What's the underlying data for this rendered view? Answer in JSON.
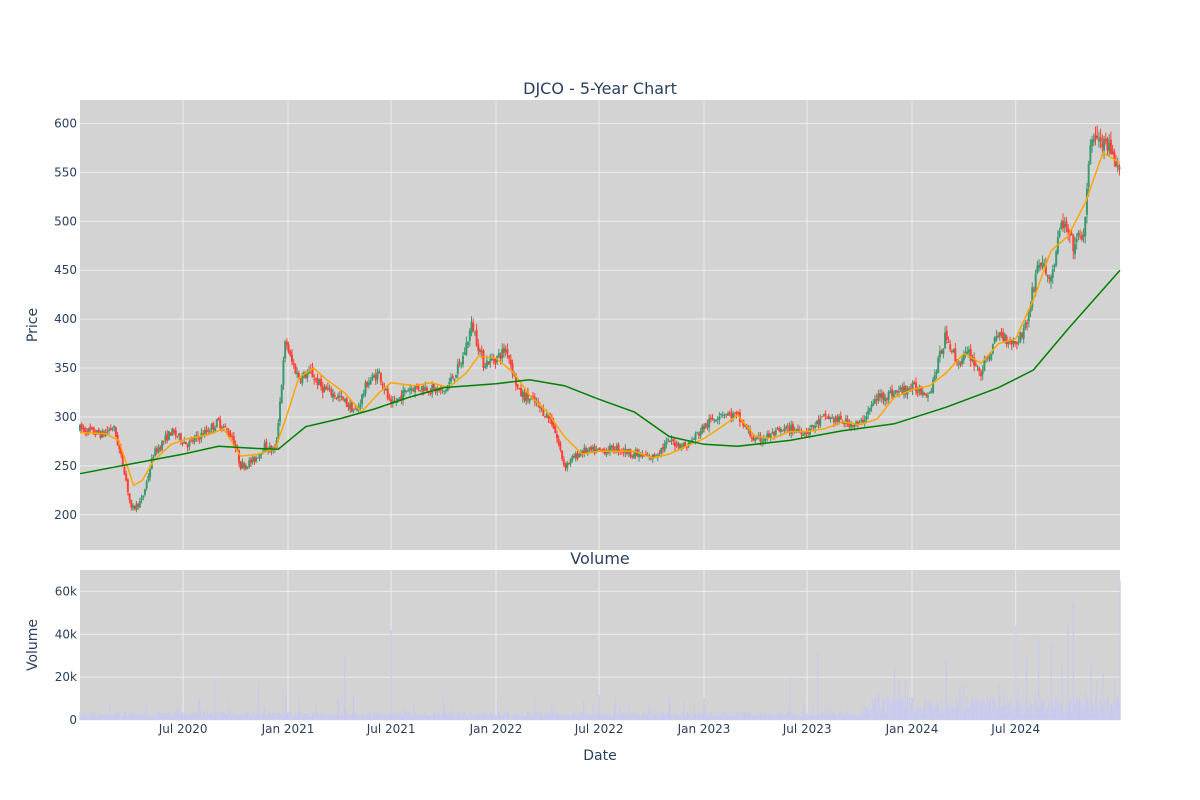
{
  "chart_data": [
    {
      "type": "candlestick",
      "title": "DJCO - 5-Year Chart",
      "ylabel": "Price",
      "ylim": [
        164,
        624
      ],
      "yticks": [
        200,
        250,
        300,
        350,
        400,
        450,
        500,
        550,
        600
      ],
      "xlim": [
        "2020-01-02",
        "2024-12-31"
      ],
      "series": [
        {
          "name": "",
          "kind": "ohlc",
          "color_up": "#3d9970",
          "color_down": "#ff4136"
        },
        {
          "name": "",
          "kind": "moving_average_short",
          "color": "#ffa500",
          "points": [
            [
              "2020-01-02",
              284
            ],
            [
              "2020-02-15",
              283
            ],
            [
              "2020-03-10",
              276
            ],
            [
              "2020-04-05",
              230
            ],
            [
              "2020-04-20",
              235
            ],
            [
              "2020-05-10",
              255
            ],
            [
              "2020-06-10",
              272
            ],
            [
              "2020-07-10",
              278
            ],
            [
              "2020-08-15",
              282
            ],
            [
              "2020-09-10",
              288
            ],
            [
              "2020-10-10",
              260
            ],
            [
              "2020-11-10",
              262
            ],
            [
              "2020-12-10",
              268
            ],
            [
              "2020-12-28",
              298
            ],
            [
              "2021-01-20",
              340
            ],
            [
              "2021-02-15",
              350
            ],
            [
              "2021-03-10",
              338
            ],
            [
              "2021-04-10",
              325
            ],
            [
              "2021-05-10",
              305
            ],
            [
              "2021-06-10",
              325
            ],
            [
              "2021-07-01",
              335
            ],
            [
              "2021-08-10",
              332
            ],
            [
              "2021-09-10",
              335
            ],
            [
              "2021-10-10",
              330
            ],
            [
              "2021-11-10",
              345
            ],
            [
              "2021-12-01",
              362
            ],
            [
              "2022-01-01",
              360
            ],
            [
              "2022-02-01",
              345
            ],
            [
              "2022-03-01",
              322
            ],
            [
              "2022-04-01",
              305
            ],
            [
              "2022-05-01",
              280
            ],
            [
              "2022-06-01",
              262
            ],
            [
              "2022-07-01",
              265
            ],
            [
              "2022-08-01",
              265
            ],
            [
              "2022-09-01",
              265
            ],
            [
              "2022-10-01",
              258
            ],
            [
              "2022-11-01",
              262
            ],
            [
              "2022-12-01",
              270
            ],
            [
              "2023-01-01",
              278
            ],
            [
              "2023-02-01",
              290
            ],
            [
              "2023-03-01",
              302
            ],
            [
              "2023-04-01",
              280
            ],
            [
              "2023-05-01",
              278
            ],
            [
              "2023-06-01",
              285
            ],
            [
              "2023-07-01",
              285
            ],
            [
              "2023-08-01",
              288
            ],
            [
              "2023-09-01",
              295
            ],
            [
              "2023-10-01",
              292
            ],
            [
              "2023-11-01",
              298
            ],
            [
              "2023-12-01",
              320
            ],
            [
              "2024-01-01",
              328
            ],
            [
              "2024-02-01",
              332
            ],
            [
              "2024-03-01",
              345
            ],
            [
              "2024-04-01",
              365
            ],
            [
              "2024-05-01",
              355
            ],
            [
              "2024-06-01",
              375
            ],
            [
              "2024-07-01",
              380
            ],
            [
              "2024-08-01",
              420
            ],
            [
              "2024-09-01",
              470
            ],
            [
              "2024-10-01",
              485
            ],
            [
              "2024-11-01",
              520
            ],
            [
              "2024-12-01",
              570
            ],
            [
              "2024-12-31",
              560
            ]
          ]
        },
        {
          "name": "",
          "kind": "moving_average_long",
          "color": "#008000",
          "points": [
            [
              "2020-01-02",
              242
            ],
            [
              "2020-04-01",
              252
            ],
            [
              "2020-07-01",
              262
            ],
            [
              "2020-09-01",
              270
            ],
            [
              "2020-11-01",
              268
            ],
            [
              "2020-12-15",
              267
            ],
            [
              "2021-02-01",
              290
            ],
            [
              "2021-04-01",
              298
            ],
            [
              "2021-06-01",
              308
            ],
            [
              "2021-08-01",
              320
            ],
            [
              "2021-10-01",
              330
            ],
            [
              "2022-01-01",
              334
            ],
            [
              "2022-03-01",
              338
            ],
            [
              "2022-05-01",
              332
            ],
            [
              "2022-07-01",
              318
            ],
            [
              "2022-09-01",
              305
            ],
            [
              "2022-11-01",
              280
            ],
            [
              "2023-01-01",
              272
            ],
            [
              "2023-03-01",
              270
            ],
            [
              "2023-06-01",
              276
            ],
            [
              "2023-09-01",
              286
            ],
            [
              "2023-12-01",
              293
            ],
            [
              "2024-03-01",
              310
            ],
            [
              "2024-06-01",
              330
            ],
            [
              "2024-08-01",
              348
            ],
            [
              "2024-10-01",
              390
            ],
            [
              "2024-12-31",
              450
            ]
          ]
        }
      ]
    },
    {
      "type": "bar",
      "title": "Volume",
      "ylabel": "Volume",
      "xlabel": "Date",
      "ylim": [
        0,
        70000
      ],
      "yticks": [
        0,
        20000,
        40000,
        60000
      ],
      "ytick_labels": [
        "0",
        "20k",
        "40k",
        "60k"
      ],
      "xticks": [
        "2020-07-01",
        "2021-01-01",
        "2021-07-01",
        "2022-01-01",
        "2022-07-01",
        "2023-01-01",
        "2023-07-01",
        "2024-01-01",
        "2024-07-01"
      ],
      "xtick_labels": [
        "Jul 2020",
        "Jan 2021",
        "Jul 2021",
        "Jan 2022",
        "Jul 2022",
        "Jan 2023",
        "Jul 2023",
        "Jan 2024",
        "Jul 2024"
      ],
      "color": "#c8c8f0"
    }
  ],
  "ohlc_anchor_closes": [
    [
      "2020-01-02",
      288
    ],
    [
      "2020-02-10",
      282
    ],
    [
      "2020-03-01",
      290
    ],
    [
      "2020-03-20",
      245
    ],
    [
      "2020-04-01",
      205
    ],
    [
      "2020-04-20",
      215
    ],
    [
      "2020-05-10",
      262
    ],
    [
      "2020-06-10",
      285
    ],
    [
      "2020-07-10",
      272
    ],
    [
      "2020-08-10",
      285
    ],
    [
      "2020-09-01",
      295
    ],
    [
      "2020-09-25",
      280
    ],
    [
      "2020-10-10",
      250
    ],
    [
      "2020-11-01",
      255
    ],
    [
      "2020-11-20",
      270
    ],
    [
      "2020-12-10",
      265
    ],
    [
      "2020-12-28",
      380
    ],
    [
      "2021-01-05",
      360
    ],
    [
      "2021-01-20",
      340
    ],
    [
      "2021-02-10",
      345
    ],
    [
      "2021-03-01",
      330
    ],
    [
      "2021-04-01",
      320
    ],
    [
      "2021-05-01",
      305
    ],
    [
      "2021-05-20",
      335
    ],
    [
      "2021-06-10",
      345
    ],
    [
      "2021-07-01",
      310
    ],
    [
      "2021-08-01",
      330
    ],
    [
      "2021-09-01",
      330
    ],
    [
      "2021-10-01",
      325
    ],
    [
      "2021-11-01",
      355
    ],
    [
      "2021-11-20",
      395
    ],
    [
      "2021-12-10",
      355
    ],
    [
      "2022-01-01",
      360
    ],
    [
      "2022-01-20",
      370
    ],
    [
      "2022-02-10",
      325
    ],
    [
      "2022-03-10",
      315
    ],
    [
      "2022-04-10",
      295
    ],
    [
      "2022-05-01",
      250
    ],
    [
      "2022-06-01",
      265
    ],
    [
      "2022-07-01",
      265
    ],
    [
      "2022-08-01",
      268
    ],
    [
      "2022-09-01",
      262
    ],
    [
      "2022-10-01",
      258
    ],
    [
      "2022-11-01",
      275
    ],
    [
      "2022-12-01",
      270
    ],
    [
      "2023-01-01",
      290
    ],
    [
      "2023-02-01",
      305
    ],
    [
      "2023-03-01",
      300
    ],
    [
      "2023-04-01",
      275
    ],
    [
      "2023-05-01",
      282
    ],
    [
      "2023-06-01",
      288
    ],
    [
      "2023-07-01",
      285
    ],
    [
      "2023-08-01",
      300
    ],
    [
      "2023-09-01",
      295
    ],
    [
      "2023-10-01",
      292
    ],
    [
      "2023-11-01",
      320
    ],
    [
      "2023-12-01",
      325
    ],
    [
      "2024-01-01",
      330
    ],
    [
      "2024-02-01",
      325
    ],
    [
      "2024-03-01",
      385
    ],
    [
      "2024-03-20",
      355
    ],
    [
      "2024-04-10",
      365
    ],
    [
      "2024-05-01",
      345
    ],
    [
      "2024-06-01",
      385
    ],
    [
      "2024-07-01",
      375
    ],
    [
      "2024-07-20",
      395
    ],
    [
      "2024-08-10",
      460
    ],
    [
      "2024-09-01",
      440
    ],
    [
      "2024-09-20",
      500
    ],
    [
      "2024-10-10",
      475
    ],
    [
      "2024-10-30",
      490
    ],
    [
      "2024-11-10",
      590
    ],
    [
      "2024-11-25",
      580
    ],
    [
      "2024-12-10",
      575
    ],
    [
      "2024-12-31",
      545
    ]
  ],
  "volume_spikes": [
    [
      "2020-08-25",
      19000
    ],
    [
      "2020-11-10",
      18000
    ],
    [
      "2020-12-28",
      12000
    ],
    [
      "2021-01-20",
      11000
    ],
    [
      "2021-04-10",
      30000
    ],
    [
      "2021-07-01",
      42000
    ],
    [
      "2021-10-01",
      11000
    ],
    [
      "2022-07-01",
      12000
    ],
    [
      "2022-11-01",
      11000
    ],
    [
      "2023-01-01",
      10000
    ],
    [
      "2023-06-01",
      20000
    ],
    [
      "2023-07-20",
      32000
    ],
    [
      "2023-12-01",
      25000
    ],
    [
      "2023-12-20",
      18000
    ],
    [
      "2024-03-01",
      28000
    ],
    [
      "2024-04-01",
      16000
    ],
    [
      "2024-06-01",
      17000
    ],
    [
      "2024-07-01",
      44000
    ],
    [
      "2024-07-20",
      30000
    ],
    [
      "2024-08-10",
      38000
    ],
    [
      "2024-09-01",
      35000
    ],
    [
      "2024-09-20",
      25000
    ],
    [
      "2024-10-01",
      44000
    ],
    [
      "2024-10-10",
      55000
    ],
    [
      "2024-11-10",
      27000
    ],
    [
      "2024-12-01",
      22000
    ],
    [
      "2024-12-31",
      65000
    ]
  ]
}
